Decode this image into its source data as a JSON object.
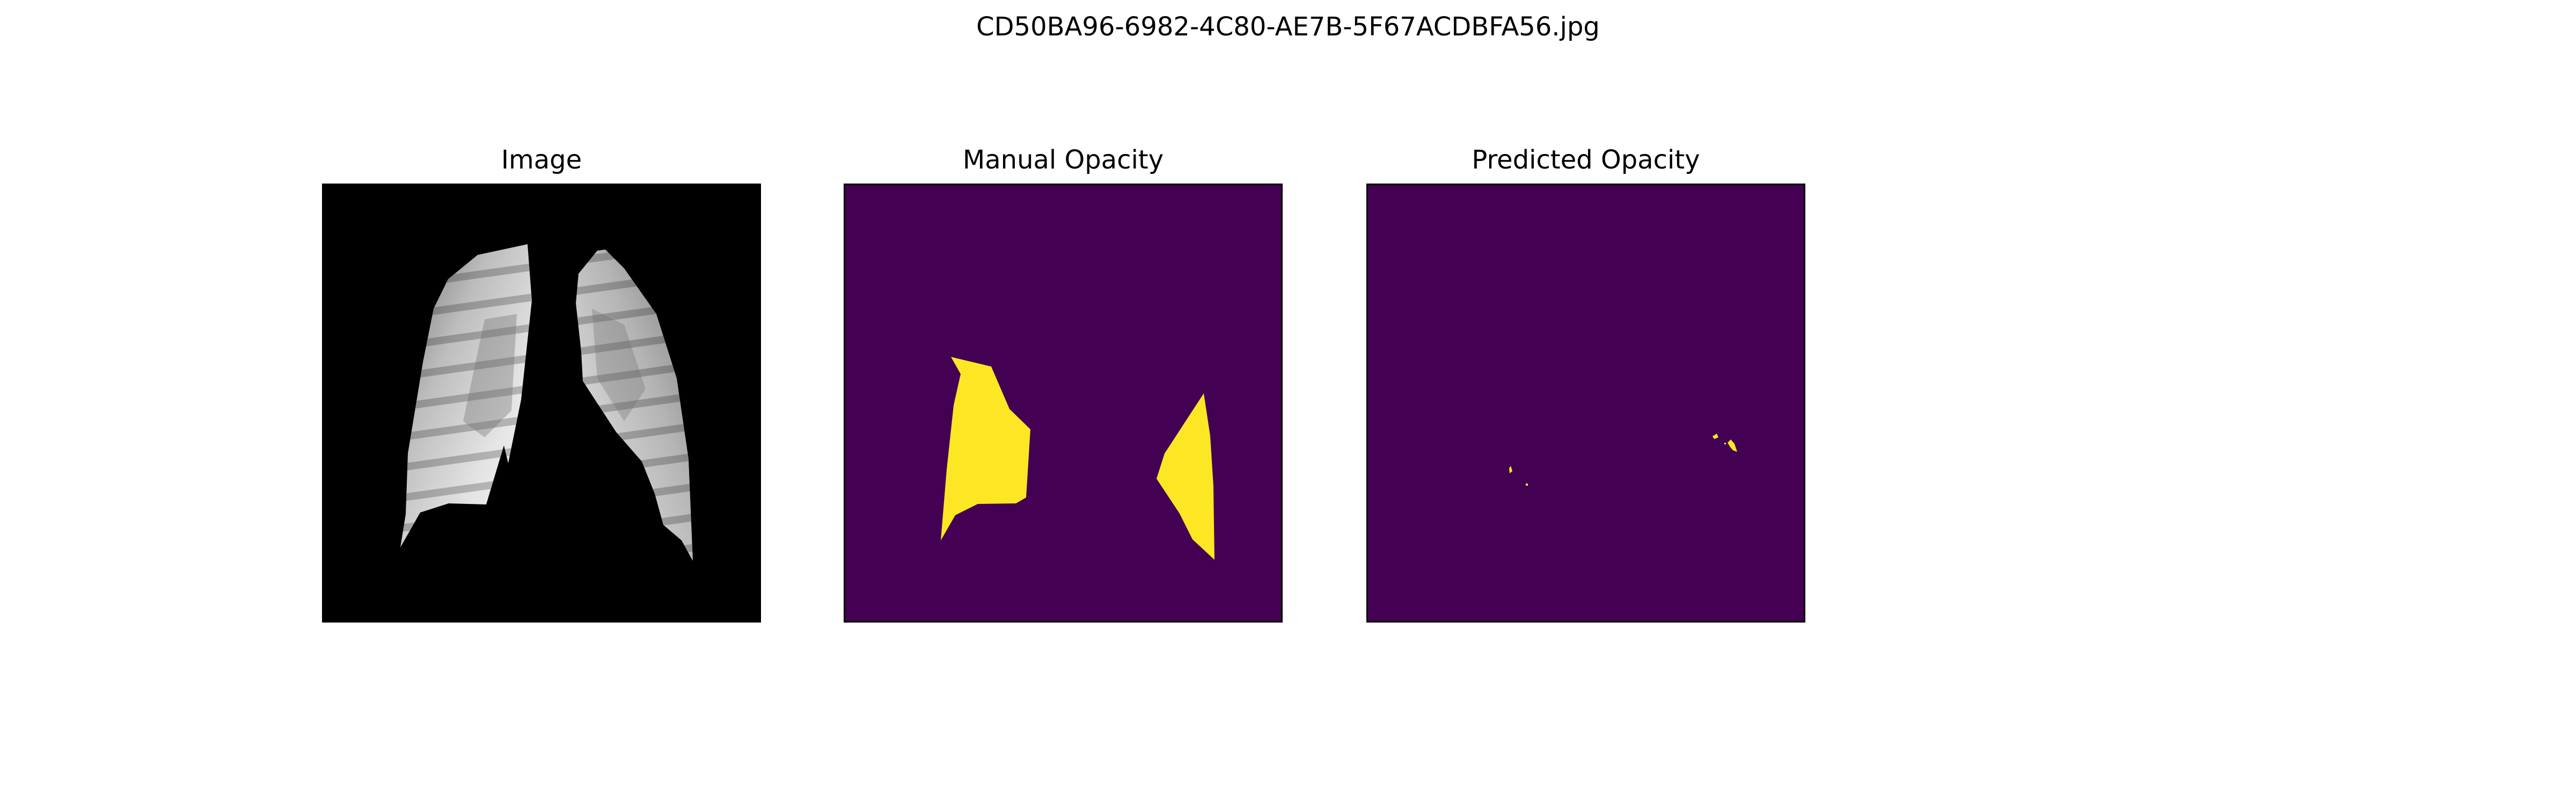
{
  "figure": {
    "title": "CD50BA96-6982-4C80-AE7B-5F67ACDBFA56.jpg"
  },
  "panels": [
    {
      "title": "Image"
    },
    {
      "title": "Manual Opacity"
    },
    {
      "title": "Predicted Opacity"
    }
  ],
  "colors": {
    "background_mask": "#440154",
    "foreground_mask": "#fde725",
    "xray_background": "#000000"
  }
}
